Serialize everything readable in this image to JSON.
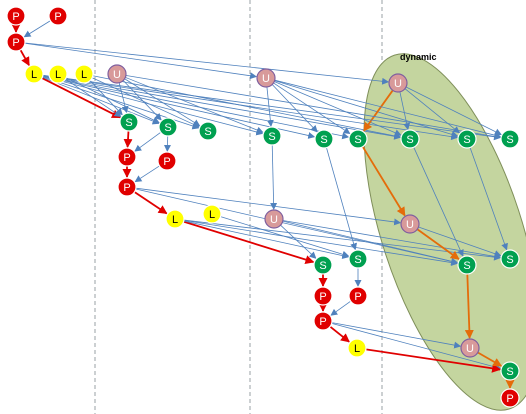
{
  "diagram": {
    "region_label": "dynamic",
    "node_letters": {
      "P": "P",
      "L": "L",
      "U": "U",
      "S": "S"
    },
    "colors": {
      "P": "#e00000",
      "L": "#ffff00",
      "U": "#d89a9a",
      "S": "#00a050",
      "blue_edge": "#4f81bd",
      "red_edge": "#e00000",
      "orange_edge": "#e46c0a",
      "region_fill": "#c4d59f",
      "divider": "#9aa0a6"
    },
    "nodes": [
      {
        "id": "p1",
        "type": "P"
      },
      {
        "id": "p2",
        "type": "P"
      },
      {
        "id": "p3",
        "type": "P"
      },
      {
        "id": "l1",
        "type": "L"
      },
      {
        "id": "l2",
        "type": "L"
      },
      {
        "id": "l3",
        "type": "L"
      },
      {
        "id": "u1",
        "type": "U"
      },
      {
        "id": "u2",
        "type": "U"
      },
      {
        "id": "u3",
        "type": "U"
      },
      {
        "id": "s1",
        "type": "S"
      },
      {
        "id": "s2",
        "type": "S"
      },
      {
        "id": "s3",
        "type": "S"
      },
      {
        "id": "s4",
        "type": "S"
      },
      {
        "id": "s5",
        "type": "S"
      },
      {
        "id": "s6",
        "type": "S"
      },
      {
        "id": "s7",
        "type": "S"
      },
      {
        "id": "s8",
        "type": "S"
      },
      {
        "id": "p4",
        "type": "P"
      },
      {
        "id": "p5",
        "type": "P"
      },
      {
        "id": "p6",
        "type": "P"
      },
      {
        "id": "l4",
        "type": "L"
      },
      {
        "id": "l5",
        "type": "L"
      },
      {
        "id": "u4",
        "type": "U"
      },
      {
        "id": "u5",
        "type": "U"
      },
      {
        "id": "s9",
        "type": "S"
      },
      {
        "id": "s10",
        "type": "S"
      },
      {
        "id": "s11",
        "type": "S"
      },
      {
        "id": "s12",
        "type": "S"
      },
      {
        "id": "p7",
        "type": "P"
      },
      {
        "id": "p8",
        "type": "P"
      },
      {
        "id": "p9",
        "type": "P"
      },
      {
        "id": "l6",
        "type": "L"
      },
      {
        "id": "u6",
        "type": "U"
      },
      {
        "id": "s13",
        "type": "S"
      },
      {
        "id": "p10",
        "type": "P"
      }
    ],
    "edges": [
      {
        "from": "p1",
        "to": "p3",
        "kind": "red"
      },
      {
        "from": "p2",
        "to": "p3",
        "kind": "blue"
      },
      {
        "from": "p3",
        "to": "l1",
        "kind": "red"
      },
      {
        "from": "p3",
        "to": "u2",
        "kind": "blue"
      },
      {
        "from": "p3",
        "to": "u3",
        "kind": "blue"
      },
      {
        "from": "l1",
        "to": "s1",
        "kind": "red"
      },
      {
        "from": "l1",
        "to": "s2",
        "kind": "blue"
      },
      {
        "from": "l1",
        "to": "s3",
        "kind": "blue"
      },
      {
        "from": "l1",
        "to": "s4",
        "kind": "blue"
      },
      {
        "from": "l1",
        "to": "s5",
        "kind": "blue"
      },
      {
        "from": "l1",
        "to": "s6",
        "kind": "blue"
      },
      {
        "from": "l1",
        "to": "s7",
        "kind": "blue"
      },
      {
        "from": "l1",
        "to": "s8",
        "kind": "blue"
      },
      {
        "from": "l2",
        "to": "s1",
        "kind": "blue"
      },
      {
        "from": "l2",
        "to": "s2",
        "kind": "blue"
      },
      {
        "from": "l3",
        "to": "s1",
        "kind": "blue"
      },
      {
        "from": "l3",
        "to": "s3",
        "kind": "blue"
      },
      {
        "from": "l3",
        "to": "s7",
        "kind": "blue"
      },
      {
        "from": "u1",
        "to": "s1",
        "kind": "blue"
      },
      {
        "from": "u1",
        "to": "s2",
        "kind": "blue"
      },
      {
        "from": "u1",
        "to": "s3",
        "kind": "blue"
      },
      {
        "from": "u1",
        "to": "s4",
        "kind": "blue"
      },
      {
        "from": "u2",
        "to": "s4",
        "kind": "blue"
      },
      {
        "from": "u2",
        "to": "s5",
        "kind": "blue"
      },
      {
        "from": "u2",
        "to": "s6",
        "kind": "blue"
      },
      {
        "from": "u2",
        "to": "s7",
        "kind": "blue"
      },
      {
        "from": "u2",
        "to": "s8",
        "kind": "blue"
      },
      {
        "from": "u3",
        "to": "s6",
        "kind": "orange"
      },
      {
        "from": "u3",
        "to": "s7",
        "kind": "blue"
      },
      {
        "from": "u3",
        "to": "s8",
        "kind": "blue"
      },
      {
        "from": "s1",
        "to": "p4",
        "kind": "red"
      },
      {
        "from": "s2",
        "to": "p5",
        "kind": "blue"
      },
      {
        "from": "s2",
        "to": "p4",
        "kind": "blue"
      },
      {
        "from": "p4",
        "to": "p6",
        "kind": "red"
      },
      {
        "from": "p5",
        "to": "p6",
        "kind": "blue"
      },
      {
        "from": "p6",
        "to": "l4",
        "kind": "red"
      },
      {
        "from": "p6",
        "to": "u5",
        "kind": "blue"
      },
      {
        "from": "p6",
        "to": "s11",
        "kind": "blue"
      },
      {
        "from": "s4",
        "to": "u4",
        "kind": "blue"
      },
      {
        "from": "s6",
        "to": "u5",
        "kind": "orange"
      },
      {
        "from": "s7",
        "to": "s11",
        "kind": "blue"
      },
      {
        "from": "s8",
        "to": "s12",
        "kind": "blue"
      },
      {
        "from": "s5",
        "to": "s10",
        "kind": "blue"
      },
      {
        "from": "l4",
        "to": "s9",
        "kind": "red"
      },
      {
        "from": "l4",
        "to": "s10",
        "kind": "blue"
      },
      {
        "from": "l4",
        "to": "s11",
        "kind": "blue"
      },
      {
        "from": "l4",
        "to": "s12",
        "kind": "blue"
      },
      {
        "from": "l5",
        "to": "s10",
        "kind": "blue"
      },
      {
        "from": "u4",
        "to": "s9",
        "kind": "blue"
      },
      {
        "from": "u4",
        "to": "s11",
        "kind": "blue"
      },
      {
        "from": "u4",
        "to": "s12",
        "kind": "blue"
      },
      {
        "from": "u5",
        "to": "s11",
        "kind": "orange"
      },
      {
        "from": "u5",
        "to": "s12",
        "kind": "blue"
      },
      {
        "from": "s9",
        "to": "p7",
        "kind": "red"
      },
      {
        "from": "s10",
        "to": "p8",
        "kind": "blue"
      },
      {
        "from": "p7",
        "to": "p9",
        "kind": "red"
      },
      {
        "from": "p8",
        "to": "p9",
        "kind": "blue"
      },
      {
        "from": "p9",
        "to": "l6",
        "kind": "red"
      },
      {
        "from": "p9",
        "to": "u6",
        "kind": "blue"
      },
      {
        "from": "p9",
        "to": "s13",
        "kind": "blue"
      },
      {
        "from": "s11",
        "to": "u6",
        "kind": "orange"
      },
      {
        "from": "l6",
        "to": "s13",
        "kind": "red"
      },
      {
        "from": "u6",
        "to": "s13",
        "kind": "orange"
      },
      {
        "from": "s13",
        "to": "p10",
        "kind": "orange"
      }
    ]
  }
}
